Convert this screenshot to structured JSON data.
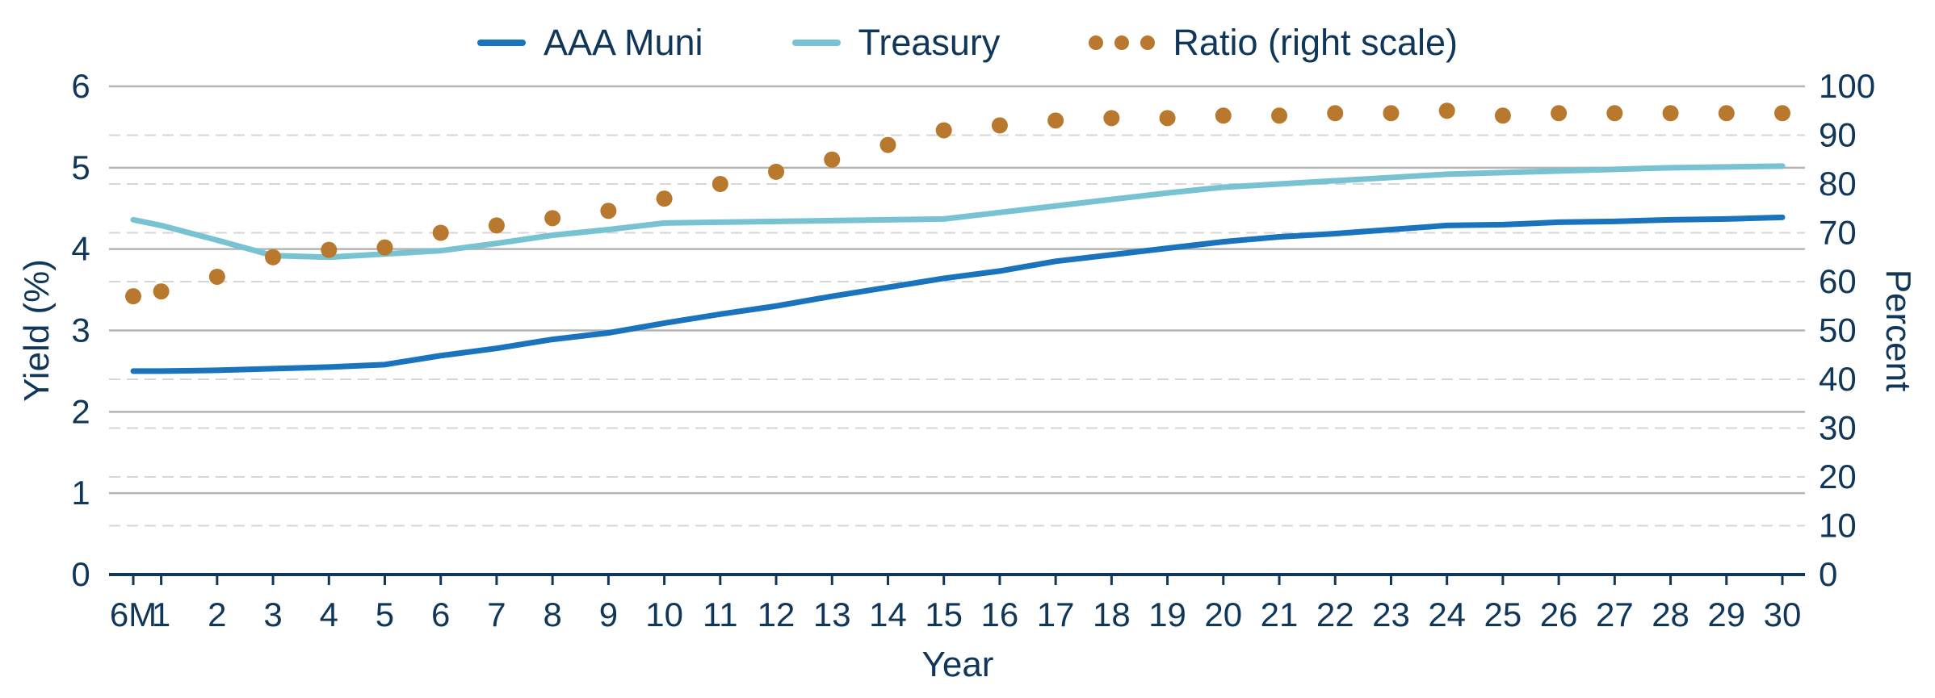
{
  "chart_data": {
    "type": "line",
    "xlabel": "Year",
    "ylabel": "Yield (%)",
    "ylabel_right": "Percent",
    "categories": [
      "6M",
      "1",
      "2",
      "3",
      "4",
      "5",
      "6",
      "7",
      "8",
      "9",
      "10",
      "11",
      "12",
      "13",
      "14",
      "15",
      "16",
      "17",
      "18",
      "19",
      "20",
      "21",
      "22",
      "23",
      "24",
      "25",
      "26",
      "27",
      "28",
      "29",
      "30"
    ],
    "x_values": [
      0.5,
      1,
      2,
      3,
      4,
      5,
      6,
      7,
      8,
      9,
      10,
      11,
      12,
      13,
      14,
      15,
      16,
      17,
      18,
      19,
      20,
      21,
      22,
      23,
      24,
      25,
      26,
      27,
      28,
      29,
      30
    ],
    "xlim": [
      0.5,
      30
    ],
    "ylim": [
      0,
      6
    ],
    "y_ticks": [
      0,
      1,
      2,
      3,
      4,
      5,
      6
    ],
    "ylim_right": [
      0,
      100
    ],
    "y_ticks_right": [
      0,
      10,
      20,
      30,
      40,
      50,
      60,
      70,
      80,
      90,
      100
    ],
    "legend_position": "top-center",
    "grid": true,
    "series": [
      {
        "name": "AAA Muni",
        "axis": "left",
        "style": "line",
        "color": "#1a73bd",
        "values": [
          2.5,
          2.5,
          2.51,
          2.53,
          2.55,
          2.58,
          2.69,
          2.78,
          2.89,
          2.97,
          3.09,
          3.2,
          3.3,
          3.42,
          3.53,
          3.64,
          3.73,
          3.85,
          3.93,
          4.01,
          4.09,
          4.15,
          4.19,
          4.24,
          4.29,
          4.3,
          4.33,
          4.34,
          4.36,
          4.37,
          4.39
        ]
      },
      {
        "name": "Treasury",
        "axis": "left",
        "style": "line",
        "color": "#78c3d1",
        "values": [
          4.36,
          4.29,
          4.11,
          3.92,
          3.9,
          3.94,
          3.98,
          4.07,
          4.17,
          4.24,
          4.32,
          4.33,
          4.34,
          4.35,
          4.36,
          4.37,
          4.45,
          4.53,
          4.61,
          4.69,
          4.76,
          4.8,
          4.84,
          4.88,
          4.92,
          4.94,
          4.96,
          4.98,
          5.0,
          5.01,
          5.02
        ]
      },
      {
        "name": "Ratio (right scale)",
        "axis": "right",
        "style": "dots",
        "color": "#b8782d",
        "values": [
          57,
          58,
          61,
          65,
          66.5,
          67,
          70,
          71.5,
          73,
          74.5,
          77,
          80,
          82.5,
          85,
          88,
          91,
          92,
          93,
          93.5,
          93.5,
          94,
          94,
          94.5,
          94.5,
          95,
          94,
          94.5,
          94.5,
          94.5,
          94.5,
          94.5
        ]
      }
    ]
  }
}
